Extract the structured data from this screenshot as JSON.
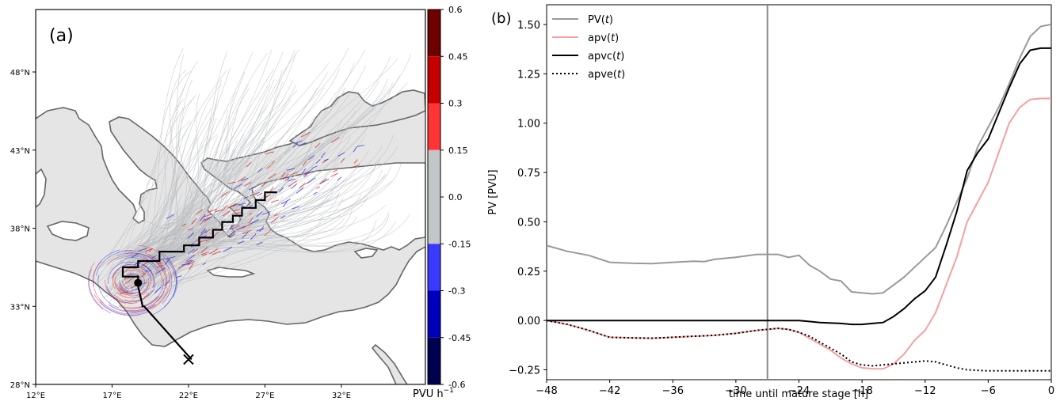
{
  "chart_data": [
    {
      "type": "map",
      "panel_label": "(a)",
      "lon_ticks": [
        "12°E",
        "17°E",
        "22°E",
        "27°E",
        "32°E"
      ],
      "lon_tick_values": [
        12,
        17,
        22,
        27,
        32
      ],
      "lat_ticks": [
        "28°N",
        "33°N",
        "38°N",
        "43°N",
        "48°N"
      ],
      "lat_tick_values": [
        28,
        33,
        38,
        43,
        48
      ],
      "xlim": [
        12,
        37.5
      ],
      "ylim": [
        28,
        52
      ],
      "colorbar": {
        "label": "PVU h",
        "label_exponent": "−1",
        "tick_labels": [
          "0.6",
          "0.45",
          "0.3",
          "0.15",
          "0.0",
          "-0.15",
          "-0.3",
          "-0.45",
          "-0.6"
        ],
        "tick_values": [
          0.6,
          0.45,
          0.3,
          0.15,
          0.0,
          -0.15,
          -0.3,
          -0.45,
          -0.6
        ],
        "bands": [
          {
            "from": 0.45,
            "to": 0.6,
            "color": "#6e0000"
          },
          {
            "from": 0.3,
            "to": 0.45,
            "color": "#c40000"
          },
          {
            "from": 0.15,
            "to": 0.3,
            "color": "#ff3535"
          },
          {
            "from": 0.0,
            "to": 0.15,
            "color": "#c3c6c9"
          },
          {
            "from": -0.15,
            "to": 0.0,
            "color": "#c3c6c9"
          },
          {
            "from": -0.3,
            "to": -0.15,
            "color": "#3a3aff"
          },
          {
            "from": -0.45,
            "to": -0.3,
            "color": "#0000bb"
          },
          {
            "from": -0.6,
            "to": -0.45,
            "color": "#000050"
          }
        ]
      },
      "cyclone_track": {
        "lon": [
          22.2,
          19.1,
          19.0,
          18.7,
          18.7,
          17.7,
          17.7,
          18.7,
          18.7,
          20.1,
          20.1,
          21.7,
          21.7,
          22.7,
          22.7,
          23.6,
          23.6,
          24.2,
          24.2,
          24.9,
          24.9,
          25.5,
          25.5,
          26.4,
          26.4,
          27.0,
          27.0,
          27.8
        ],
        "lat": [
          29.6,
          33.0,
          33.0,
          34.3,
          34.9,
          34.9,
          35.5,
          35.5,
          35.9,
          35.9,
          36.5,
          36.5,
          36.9,
          36.9,
          37.4,
          37.4,
          37.9,
          37.9,
          38.4,
          38.4,
          38.8,
          38.8,
          39.3,
          39.3,
          39.8,
          39.8,
          40.3,
          40.3
        ]
      },
      "track_start": {
        "lon": 22.0,
        "lat": 29.6,
        "marker": "x"
      },
      "mature_position": {
        "lon": 18.7,
        "lat": 34.5,
        "marker": "dot"
      },
      "colors": {
        "sea": "#e5e5e5",
        "land": "#ffffff",
        "coast": "#666666",
        "track": "#000000"
      }
    },
    {
      "type": "line",
      "panel_label": "(b)",
      "xlabel": "time until mature stage [h]",
      "ylabel": "PV [PVU]",
      "xlim": [
        -48,
        0
      ],
      "ylim": [
        -0.3,
        1.6
      ],
      "x_ticks": [
        -48,
        -42,
        -36,
        -30,
        -24,
        -18,
        -12,
        -6,
        0
      ],
      "y_ticks": [
        -0.25,
        0.0,
        0.25,
        0.5,
        0.75,
        1.0,
        1.25,
        1.5
      ],
      "vline_x": -27,
      "vline_color": "#888888",
      "legend_position": "upper-left",
      "series": [
        {
          "name": "PV(t)",
          "legend_base": "PV",
          "color": "#999999",
          "dash": "solid",
          "x": [
            -48,
            -46,
            -44,
            -42,
            -40,
            -38,
            -36,
            -34,
            -33,
            -32,
            -30,
            -28,
            -27,
            -26,
            -25,
            -24,
            -23,
            -22,
            -21,
            -20,
            -19,
            -18,
            -17,
            -16,
            -15,
            -14,
            -13,
            -12,
            -11,
            -10,
            -9,
            -8,
            -7,
            -6,
            -5,
            -4,
            -3,
            -2,
            -1,
            0
          ],
          "y": [
            0.38,
            0.35,
            0.33,
            0.295,
            0.29,
            0.288,
            0.295,
            0.3,
            0.298,
            0.31,
            0.32,
            0.335,
            0.335,
            0.335,
            0.32,
            0.33,
            0.28,
            0.25,
            0.21,
            0.2,
            0.145,
            0.14,
            0.135,
            0.14,
            0.18,
            0.22,
            0.27,
            0.32,
            0.37,
            0.48,
            0.6,
            0.72,
            0.88,
            0.98,
            1.08,
            1.2,
            1.33,
            1.44,
            1.49,
            1.5
          ]
        },
        {
          "name": "apv(t)",
          "legend_base": "apv",
          "color": "#f4a0a0",
          "dash": "solid",
          "x": [
            -48,
            -46,
            -44,
            -42,
            -40,
            -38,
            -36,
            -34,
            -32,
            -30,
            -28,
            -27,
            -26,
            -25,
            -24,
            -23,
            -22,
            -21,
            -20,
            -19,
            -18,
            -17,
            -16,
            -15,
            -14,
            -13,
            -12,
            -11,
            -10,
            -9,
            -8,
            -7,
            -6,
            -5,
            -4,
            -3,
            -2,
            -1,
            0
          ],
          "y": [
            0.0,
            -0.02,
            -0.05,
            -0.085,
            -0.088,
            -0.09,
            -0.085,
            -0.08,
            -0.075,
            -0.065,
            -0.05,
            -0.045,
            -0.04,
            -0.045,
            -0.06,
            -0.09,
            -0.12,
            -0.15,
            -0.19,
            -0.22,
            -0.24,
            -0.245,
            -0.245,
            -0.22,
            -0.17,
            -0.1,
            -0.05,
            0.04,
            0.18,
            0.32,
            0.5,
            0.6,
            0.7,
            0.85,
            1.0,
            1.08,
            1.12,
            1.125,
            1.125
          ]
        },
        {
          "name": "apvc(t)",
          "legend_base": "apvc",
          "color": "#000000",
          "dash": "solid",
          "x": [
            -48,
            -44,
            -40,
            -36,
            -32,
            -28,
            -27,
            -24,
            -22,
            -20,
            -19,
            -18,
            -17,
            -16,
            -15,
            -14,
            -13,
            -12,
            -11,
            -10,
            -9,
            -8,
            -7,
            -6,
            -5,
            -4,
            -3,
            -2,
            -1,
            0
          ],
          "y": [
            0.0,
            0.0,
            0.0,
            0.0,
            0.0,
            0.0,
            0.0,
            0.0,
            -0.01,
            -0.015,
            -0.02,
            -0.02,
            -0.015,
            -0.01,
            0.02,
            0.06,
            0.11,
            0.15,
            0.22,
            0.38,
            0.55,
            0.76,
            0.85,
            0.92,
            1.05,
            1.18,
            1.3,
            1.37,
            1.38,
            1.38
          ]
        },
        {
          "name": "apve(t)",
          "legend_base": "apve",
          "color": "#000000",
          "dash": "dotted",
          "x": [
            -48,
            -46,
            -44,
            -42,
            -40,
            -38,
            -36,
            -34,
            -32,
            -30,
            -28,
            -27,
            -26,
            -25,
            -24,
            -23,
            -22,
            -21,
            -20,
            -19,
            -18,
            -17,
            -16,
            -15,
            -14,
            -13,
            -12,
            -11,
            -10,
            -9,
            -8,
            -6,
            -4,
            -2,
            0
          ],
          "y": [
            0.0,
            -0.02,
            -0.05,
            -0.085,
            -0.088,
            -0.09,
            -0.085,
            -0.08,
            -0.075,
            -0.065,
            -0.05,
            -0.045,
            -0.04,
            -0.045,
            -0.06,
            -0.08,
            -0.11,
            -0.14,
            -0.17,
            -0.21,
            -0.225,
            -0.23,
            -0.225,
            -0.22,
            -0.215,
            -0.21,
            -0.205,
            -0.21,
            -0.225,
            -0.24,
            -0.25,
            -0.255,
            -0.255,
            -0.255,
            -0.255
          ]
        }
      ]
    }
  ]
}
